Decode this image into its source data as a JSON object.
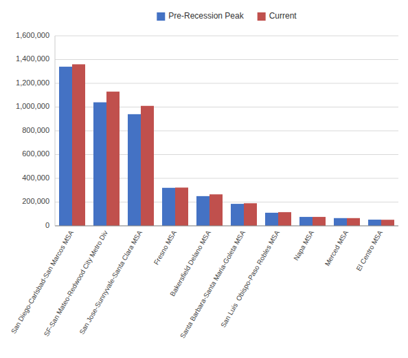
{
  "chart_data": {
    "type": "bar",
    "categories": [
      "San Diego-Carlsbad-San Marcos MSA",
      "SF-San Mateo-Redwood City Metro Div",
      "San Jose-Sunnyvale-Santa Clara MSA",
      "Fresno MSA",
      "Bakersfield Delano MSA",
      "Santa Barbara-Santa Maria-Goleta MSA",
      "San Luis  Obispo-Paso Robles MSA",
      "Napa MSA",
      "Merced MSA",
      "El Centro MSA"
    ],
    "series": [
      {
        "name": "Pre-Recession Peak",
        "color": "#4472C4",
        "values": [
          1340000,
          1040000,
          940000,
          320000,
          250000,
          185000,
          110000,
          75000,
          65000,
          52000
        ]
      },
      {
        "name": "Current",
        "color": "#C0504D",
        "values": [
          1360000,
          1130000,
          1010000,
          322000,
          265000,
          190000,
          115000,
          75000,
          65000,
          51000
        ]
      }
    ],
    "ylim": [
      0,
      1600000
    ],
    "yticks": [
      0,
      {
        "value": 200000,
        "label": "200,000"
      },
      {
        "value": 400000,
        "label": "400,000"
      },
      {
        "value": 600000,
        "label": "600,000"
      },
      {
        "value": 800000,
        "label": "800,000"
      },
      {
        "value": 1000000,
        "label": "1,000,000"
      },
      {
        "value": 1200000,
        "label": "1,200,000"
      },
      {
        "value": 1400000,
        "label": "1,400,000"
      },
      {
        "value": 1600000,
        "label": "1,600,000"
      }
    ],
    "grid": true,
    "legend": "top"
  }
}
